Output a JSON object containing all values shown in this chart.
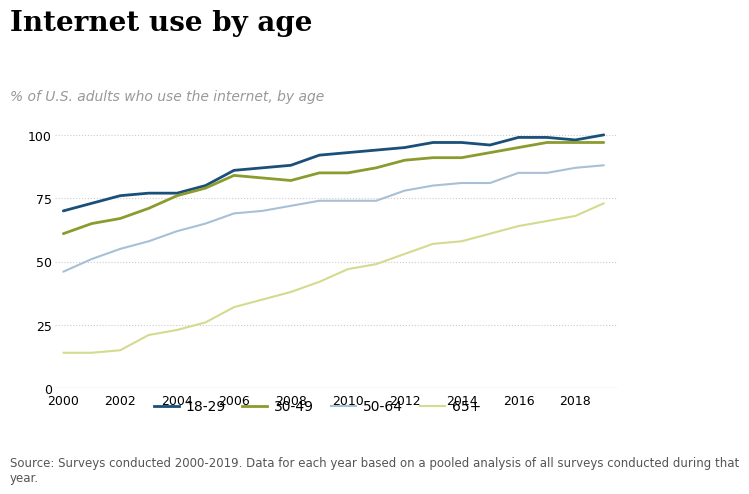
{
  "title": "Internet use by age",
  "subtitle": "% of U.S. adults who use the internet, by age",
  "source": "Source: Surveys conducted 2000-2019. Data for each year based on a pooled analysis of all surveys conducted during that\nyear.",
  "years": [
    2000,
    2001,
    2002,
    2003,
    2004,
    2005,
    2006,
    2007,
    2008,
    2009,
    2010,
    2011,
    2012,
    2013,
    2014,
    2015,
    2016,
    2017,
    2018,
    2019
  ],
  "series": {
    "18-29": [
      70,
      73,
      76,
      77,
      77,
      80,
      86,
      87,
      88,
      92,
      93,
      94,
      95,
      97,
      97,
      96,
      99,
      99,
      98,
      100
    ],
    "30-49": [
      61,
      65,
      67,
      71,
      76,
      79,
      84,
      83,
      82,
      85,
      85,
      87,
      90,
      91,
      91,
      93,
      95,
      97,
      97,
      97
    ],
    "50-64": [
      46,
      51,
      55,
      58,
      62,
      65,
      69,
      70,
      72,
      74,
      74,
      74,
      78,
      80,
      81,
      81,
      85,
      85,
      87,
      88
    ],
    "65+": [
      14,
      14,
      15,
      21,
      23,
      26,
      32,
      35,
      38,
      42,
      47,
      49,
      53,
      57,
      58,
      61,
      64,
      66,
      68,
      73
    ]
  },
  "series_order": [
    "18-29",
    "30-49",
    "50-64",
    "65+"
  ],
  "colors": {
    "18-29": "#1a4f7a",
    "30-49": "#8b9b2e",
    "50-64": "#a8c0d6",
    "65+": "#d4da8e"
  },
  "line_widths": {
    "18-29": 2.0,
    "30-49": 2.0,
    "50-64": 1.5,
    "65+": 1.5
  },
  "ylim": [
    0,
    107
  ],
  "yticks": [
    0,
    25,
    50,
    75,
    100
  ],
  "xlim": [
    1999.7,
    2019.5
  ],
  "xticks": [
    2000,
    2002,
    2004,
    2006,
    2008,
    2010,
    2012,
    2014,
    2016,
    2018
  ],
  "background_color": "#ffffff",
  "grid_color": "#cccccc",
  "title_fontsize": 20,
  "subtitle_fontsize": 10,
  "legend_fontsize": 10,
  "tick_fontsize": 9,
  "source_fontsize": 8.5
}
